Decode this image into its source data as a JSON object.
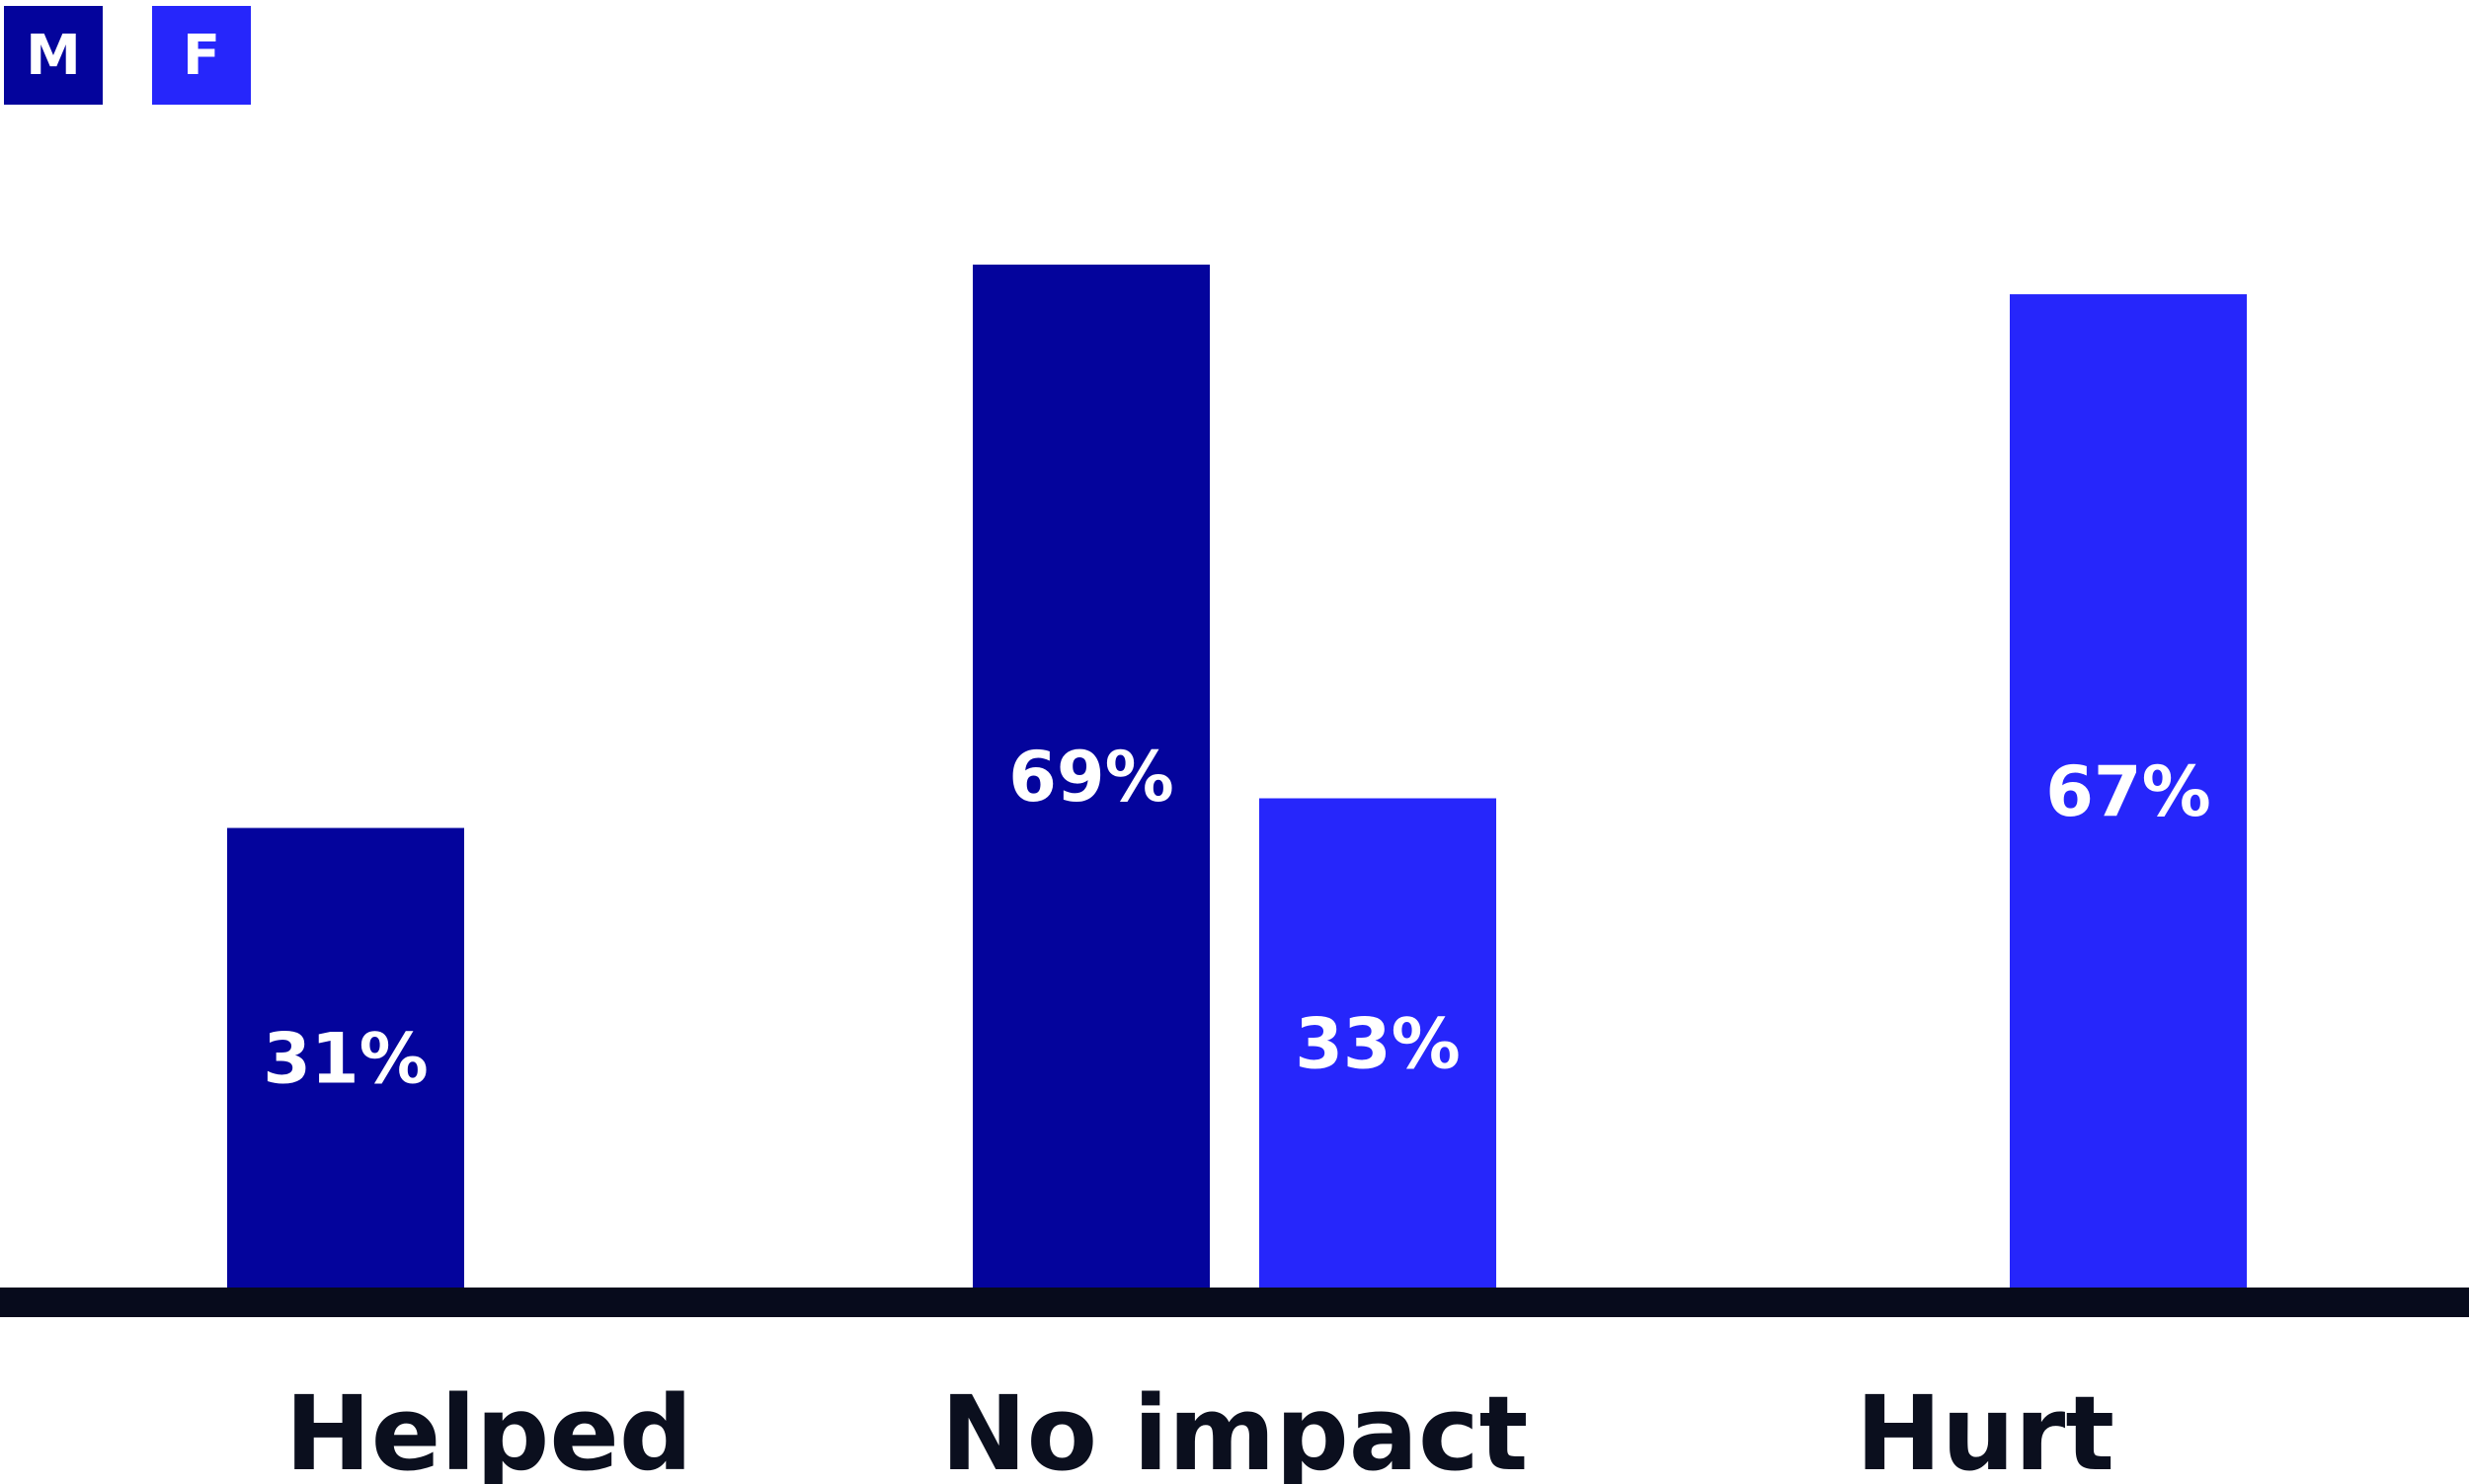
{
  "chart_data": {
    "type": "bar",
    "categories": [
      "Helped",
      "No impact",
      "Hurt"
    ],
    "series": [
      {
        "name": "M",
        "color": "#04049c",
        "values": [
          31,
          69,
          null
        ],
        "labels": [
          "31%",
          "69%",
          ""
        ]
      },
      {
        "name": "F",
        "color": "#2626fb",
        "values": [
          null,
          33,
          67
        ],
        "labels": [
          "",
          "33%",
          "67%"
        ]
      }
    ],
    "ylim": [
      0,
      70
    ],
    "grid": false,
    "legend": "top-left",
    "axis_color": "#070b1c"
  }
}
